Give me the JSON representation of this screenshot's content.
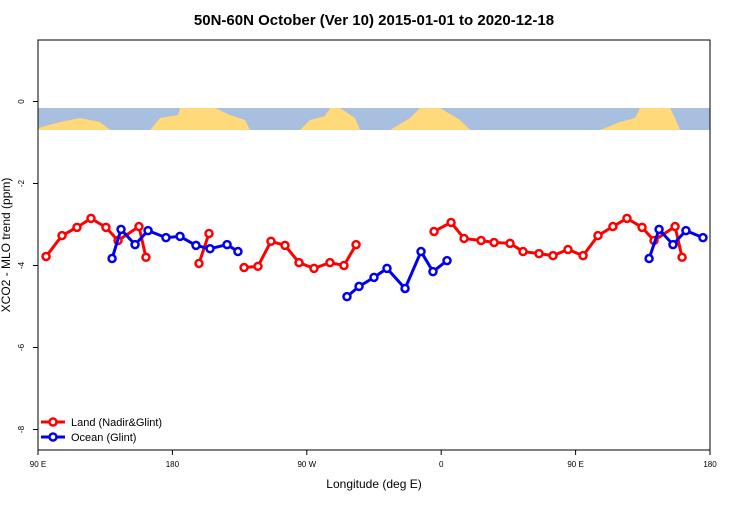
{
  "chart_data": {
    "type": "line",
    "title": "50N-60N October (Ver 10)   2015-01-01 to 2020-12-18",
    "x_label": "Longitude (deg E)",
    "y_label": "XCO2 - MLO trend (ppm)",
    "xlim": [
      90,
      540
    ],
    "ylim": [
      -8.5,
      1.5
    ],
    "xticks": [
      {
        "value": 90,
        "label": "90 E"
      },
      180,
      {
        "value": 270,
        "label": "90 W"
      },
      {
        "value": 360,
        "label": "0"
      },
      {
        "value": 450,
        "label": "90 E"
      },
      {
        "value": 540,
        "label": "180"
      }
    ],
    "yticks": [
      0,
      -2,
      -4,
      -6,
      -8
    ],
    "legend": "bottom-left",
    "series": [
      {
        "name": "Land (Nadir&Glint)",
        "color": "#ff0000",
        "x": [
          95.4,
          106.1,
          116.1,
          125.5,
          135.5,
          143.6,
          157.6,
          162.3,
          null,
          197.8,
          204.5,
          null,
          228,
          237.3,
          246,
          255.4,
          264.8,
          274.8,
          285.5,
          294.9,
          303,
          null,
          355.2,
          366.6,
          375.3,
          386.7,
          395.4,
          406.1,
          414.8,
          425.5,
          434.9,
          444.9,
          455,
          465,
          475,
          484.4,
          494.5,
          502.5,
          516.6,
          521.3
        ],
        "values": [
          -3.78,
          -3.27,
          -3.07,
          -2.85,
          -3.07,
          -3.39,
          -3.05,
          -3.8,
          null,
          -3.95,
          -3.22,
          null,
          -4.05,
          -4.02,
          -3.41,
          -3.51,
          -3.93,
          -4.07,
          -3.93,
          -4.0,
          -3.49,
          null,
          -3.17,
          -2.95,
          -3.34,
          -3.39,
          -3.44,
          -3.46,
          -3.66,
          -3.71,
          -3.76,
          -3.61,
          -3.76,
          -3.27,
          -3.05,
          -2.85,
          -3.07,
          -3.39,
          -3.05,
          -3.8
        ]
      },
      {
        "name": "Ocean (Glint)",
        "color": "#0000ee",
        "x": [
          139.6,
          145.6,
          155,
          163.7,
          175.7,
          185.1,
          195.8,
          205.2,
          216.6,
          223.9,
          null,
          296.9,
          305,
          315,
          323.7,
          335.8,
          346.5,
          354.5,
          363.9,
          null,
          499.2,
          505.9,
          515.2,
          523.9,
          535.3
        ],
        "values": [
          -3.83,
          -3.12,
          -3.49,
          -3.15,
          -3.32,
          -3.29,
          -3.51,
          -3.59,
          -3.49,
          -3.66,
          null,
          -4.76,
          -4.51,
          -4.29,
          -4.07,
          -4.56,
          -3.66,
          -4.15,
          -3.88,
          null,
          -3.83,
          -3.12,
          -3.49,
          -3.15,
          -3.32
        ]
      }
    ]
  }
}
